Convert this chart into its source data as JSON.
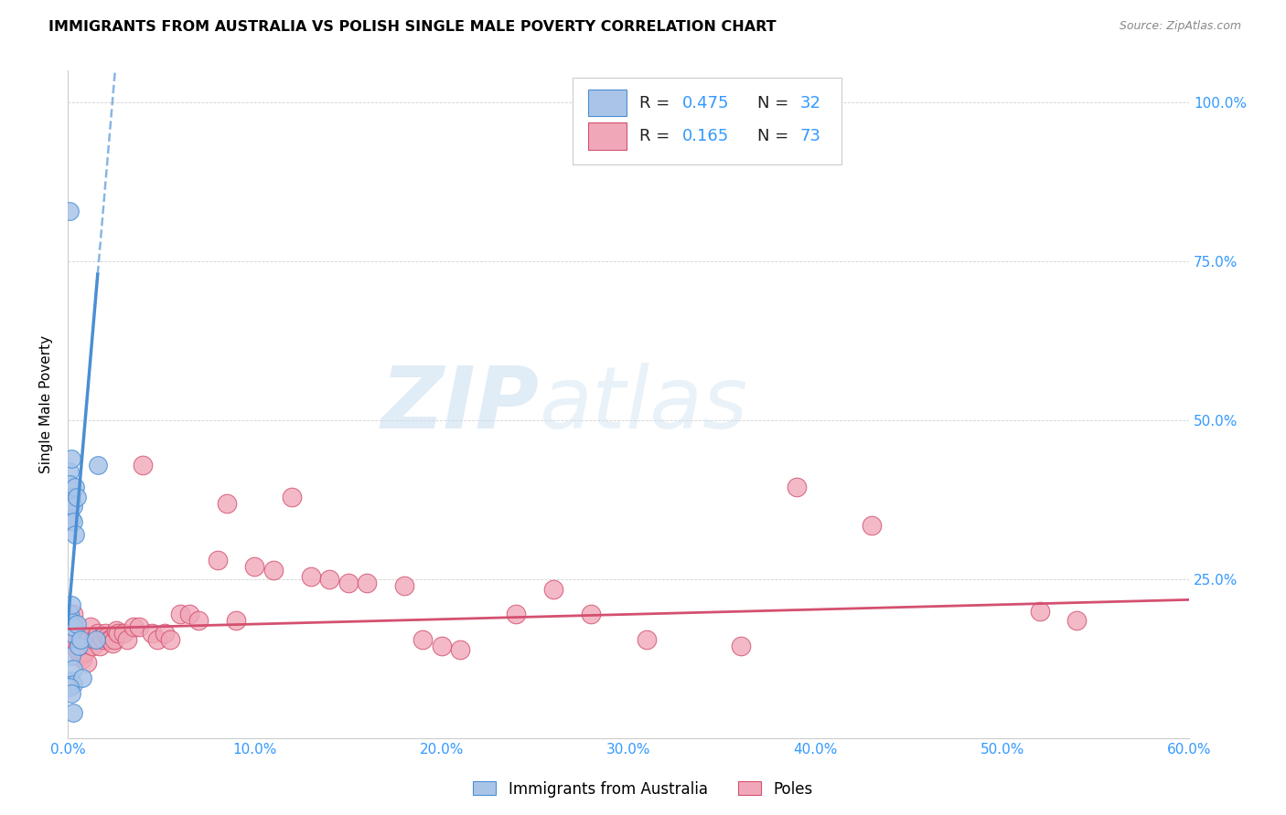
{
  "title": "IMMIGRANTS FROM AUSTRALIA VS POLISH SINGLE MALE POVERTY CORRELATION CHART",
  "source": "Source: ZipAtlas.com",
  "ylabel": "Single Male Poverty",
  "color_australia": "#aac4e8",
  "color_australia_line": "#4a8fd4",
  "color_poles": "#f0a8b8",
  "color_poles_line": "#d45070",
  "color_tick": "#3399ff",
  "watermark_zip": "ZIP",
  "watermark_atlas": "atlas",
  "xlim": [
    0.0,
    0.6
  ],
  "ylim": [
    0.0,
    1.05
  ],
  "aus_scatter_x": [
    0.001,
    0.001,
    0.001,
    0.001,
    0.001,
    0.001,
    0.001,
    0.002,
    0.002,
    0.002,
    0.002,
    0.002,
    0.002,
    0.002,
    0.003,
    0.003,
    0.003,
    0.003,
    0.003,
    0.004,
    0.004,
    0.005,
    0.005,
    0.006,
    0.007,
    0.008,
    0.015,
    0.016,
    0.001,
    0.002,
    0.002,
    0.003
  ],
  "aus_scatter_y": [
    0.83,
    0.42,
    0.4,
    0.375,
    0.355,
    0.195,
    0.185,
    0.44,
    0.38,
    0.37,
    0.345,
    0.165,
    0.13,
    0.09,
    0.365,
    0.34,
    0.175,
    0.11,
    0.085,
    0.395,
    0.32,
    0.38,
    0.18,
    0.145,
    0.155,
    0.095,
    0.155,
    0.43,
    0.08,
    0.07,
    0.21,
    0.04
  ],
  "poles_scatter_x": [
    0.001,
    0.001,
    0.002,
    0.002,
    0.002,
    0.003,
    0.003,
    0.003,
    0.004,
    0.004,
    0.005,
    0.005,
    0.006,
    0.006,
    0.007,
    0.007,
    0.008,
    0.008,
    0.009,
    0.01,
    0.01,
    0.011,
    0.012,
    0.013,
    0.014,
    0.015,
    0.016,
    0.017,
    0.018,
    0.019,
    0.02,
    0.021,
    0.022,
    0.023,
    0.024,
    0.025,
    0.026,
    0.027,
    0.03,
    0.032,
    0.035,
    0.038,
    0.04,
    0.045,
    0.048,
    0.052,
    0.055,
    0.06,
    0.065,
    0.07,
    0.08,
    0.085,
    0.09,
    0.1,
    0.11,
    0.12,
    0.13,
    0.14,
    0.15,
    0.16,
    0.18,
    0.19,
    0.2,
    0.21,
    0.24,
    0.26,
    0.28,
    0.31,
    0.36,
    0.39,
    0.43,
    0.52,
    0.54
  ],
  "poles_scatter_y": [
    0.195,
    0.18,
    0.17,
    0.16,
    0.155,
    0.195,
    0.18,
    0.165,
    0.16,
    0.145,
    0.16,
    0.14,
    0.155,
    0.135,
    0.155,
    0.13,
    0.145,
    0.125,
    0.135,
    0.16,
    0.12,
    0.155,
    0.175,
    0.145,
    0.155,
    0.16,
    0.165,
    0.145,
    0.16,
    0.155,
    0.165,
    0.16,
    0.155,
    0.155,
    0.15,
    0.155,
    0.17,
    0.165,
    0.165,
    0.155,
    0.175,
    0.175,
    0.43,
    0.165,
    0.155,
    0.165,
    0.155,
    0.195,
    0.195,
    0.185,
    0.28,
    0.37,
    0.185,
    0.27,
    0.265,
    0.38,
    0.255,
    0.25,
    0.245,
    0.245,
    0.24,
    0.155,
    0.145,
    0.14,
    0.195,
    0.235,
    0.195,
    0.155,
    0.145,
    0.395,
    0.335,
    0.2,
    0.185
  ],
  "xtick_positions": [
    0.0,
    0.1,
    0.2,
    0.3,
    0.4,
    0.5,
    0.6
  ],
  "xtick_labels": [
    "0.0%",
    "10.0%",
    "20.0%",
    "30.0%",
    "40.0%",
    "50.0%",
    "60.0%"
  ],
  "ytick_positions": [
    0.0,
    0.25,
    0.5,
    0.75,
    1.0
  ],
  "ytick_labels_right": [
    "",
    "25.0%",
    "50.0%",
    "75.0%",
    "100.0%"
  ]
}
